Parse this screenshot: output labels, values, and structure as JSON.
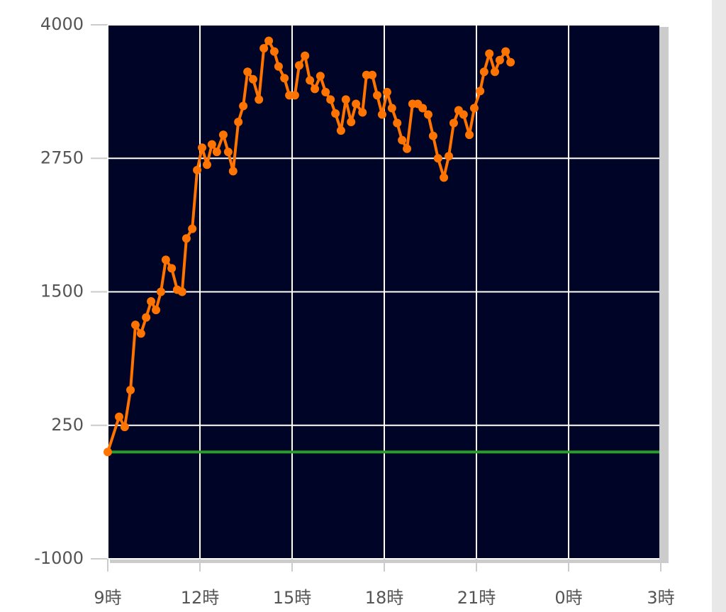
{
  "chart_data": {
    "type": "line",
    "x": [
      9.0,
      9.37,
      9.55,
      9.74,
      9.9,
      10.08,
      10.25,
      10.41,
      10.57,
      10.73,
      10.89,
      11.08,
      11.26,
      11.42,
      11.56,
      11.75,
      11.91,
      12.07,
      12.23,
      12.39,
      12.55,
      12.76,
      12.92,
      13.08,
      13.25,
      13.41,
      13.55,
      13.73,
      13.92,
      14.08,
      14.24,
      14.42,
      14.56,
      14.75,
      14.91,
      15.09,
      15.23,
      15.42,
      15.58,
      15.74,
      15.92,
      16.09,
      16.25,
      16.41,
      16.59,
      16.75,
      16.92,
      17.08,
      17.29,
      17.42,
      17.61,
      17.77,
      17.93,
      18.09,
      18.25,
      18.42,
      18.58,
      18.74,
      18.92,
      19.09,
      19.25,
      19.43,
      19.59,
      19.75,
      19.94,
      20.1,
      20.26,
      20.42,
      20.58,
      20.77,
      20.93,
      21.12,
      21.25,
      21.42,
      21.6,
      21.76,
      21.95,
      22.11
    ],
    "values": [
      0,
      330,
      235,
      580,
      1190,
      1110,
      1260,
      1410,
      1330,
      1500,
      1800,
      1720,
      1520,
      1500,
      2000,
      2090,
      2640,
      2850,
      2690,
      2880,
      2810,
      2970,
      2810,
      2630,
      3090,
      3240,
      3560,
      3490,
      3300,
      3780,
      3850,
      3750,
      3610,
      3500,
      3340,
      3340,
      3620,
      3710,
      3480,
      3400,
      3520,
      3370,
      3300,
      3170,
      3010,
      3300,
      3090,
      3260,
      3180,
      3530,
      3530,
      3340,
      3160,
      3370,
      3220,
      3080,
      2920,
      2840,
      3260,
      3260,
      3220,
      3160,
      2960,
      2750,
      2570,
      2770,
      3080,
      3200,
      3160,
      2970,
      3220,
      3380,
      3560,
      3730,
      3560,
      3670,
      3750,
      3650
    ],
    "color": "#ff7300",
    "reference_line": {
      "value": 0,
      "color": "#2a9d2a"
    },
    "xlim": [
      9,
      27
    ],
    "xticks": [
      {
        "value": 9,
        "label": "9時"
      },
      {
        "value": 12,
        "label": "12時"
      },
      {
        "value": 15,
        "label": "15時"
      },
      {
        "value": 18,
        "label": "18時"
      },
      {
        "value": 21,
        "label": "21時"
      },
      {
        "value": 24,
        "label": "0時"
      },
      {
        "value": 27,
        "label": "3時"
      }
    ],
    "ylim": [
      -1000,
      4000
    ],
    "yticks": [
      -1000,
      250,
      1500,
      2750,
      4000
    ],
    "grid": true
  }
}
